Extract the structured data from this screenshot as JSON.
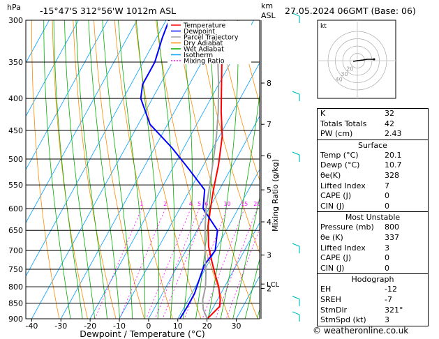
{
  "header": {
    "location": "-15°47'S  312°56'W  1012m  ASL",
    "datetime": "27.05.2024  06GMT  (Base: 06)",
    "hpa_label": "hPa",
    "km_label": "km",
    "asl_label": "ASL"
  },
  "legend": [
    "Temperature",
    "Dewpoint",
    "Parcel Trajectory",
    "Dry Adiabat",
    "Wet Adiabat",
    "Isotherm",
    "Mixing Ratio"
  ],
  "colors": {
    "temperature": "#ff0000",
    "dewpoint": "#0000ff",
    "parcel": "#a0a0a0",
    "dry_adiabat": "#ff8c00",
    "wet_adiabat": "#00b000",
    "isotherm": "#00a0ff",
    "mixing_ratio": "#ff00ff",
    "wind": "#00c0c0"
  },
  "chart_data": {
    "type": "line",
    "xlabel": "Dewpoint / Temperature (°C)",
    "ylabel": "",
    "y2label": "Mixing Ratio (g/kg)",
    "x_ticks": [
      -40,
      -30,
      -20,
      -10,
      0,
      10,
      20,
      30
    ],
    "x_range": [
      -42,
      38
    ],
    "pressure_levels": [
      300,
      350,
      400,
      450,
      500,
      550,
      600,
      650,
      700,
      750,
      800,
      850,
      900
    ],
    "km_ticks": [
      {
        "km": "8",
        "p": 378
      },
      {
        "km": "7",
        "p": 440
      },
      {
        "km": "6",
        "p": 494
      },
      {
        "km": "5",
        "p": 560
      },
      {
        "km": "4",
        "p": 630
      },
      {
        "km": "3",
        "p": 712
      },
      {
        "km": "2",
        "p": 805
      }
    ],
    "lcl": {
      "label": "LCL",
      "p": 792
    },
    "mixing_ratio_labels": [
      {
        "label": "1",
        "t": -9.5
      },
      {
        "label": "2",
        "t": -1
      },
      {
        "label": "4",
        "t": 8
      },
      {
        "label": "5",
        "t": 11.5
      },
      {
        "label": "6",
        "t": 14.5
      },
      {
        "label": "10",
        "t": 20.5
      },
      {
        "label": "15",
        "t": 27.5
      },
      {
        "label": "20",
        "t": 32.5
      },
      {
        "label": "25",
        "t": 35.5
      }
    ],
    "series": [
      {
        "name": "Temperature",
        "points": [
          [
            20.1,
            900
          ],
          [
            22,
            860
          ],
          [
            21,
            840
          ],
          [
            18,
            800
          ],
          [
            14,
            760
          ],
          [
            10,
            720
          ],
          [
            7,
            690
          ],
          [
            3,
            640
          ],
          [
            0.5,
            600
          ],
          [
            -2,
            560
          ],
          [
            -5,
            510
          ],
          [
            -9,
            460
          ],
          [
            -14,
            420
          ],
          [
            -19,
            380
          ],
          [
            -26,
            330
          ],
          [
            -30,
            300
          ]
        ]
      },
      {
        "name": "Dewpoint",
        "points": [
          [
            10.7,
            900
          ],
          [
            11,
            860
          ],
          [
            11,
            820
          ],
          [
            10.5,
            800
          ],
          [
            10,
            780
          ],
          [
            9,
            740
          ],
          [
            10,
            700
          ],
          [
            7,
            650
          ],
          [
            -2,
            600
          ],
          [
            -5,
            560
          ],
          [
            -14,
            520
          ],
          [
            -24,
            480
          ],
          [
            -36,
            440
          ],
          [
            -44,
            400
          ],
          [
            -46,
            380
          ],
          [
            -46,
            350
          ],
          [
            -48,
            320
          ],
          [
            -49,
            300
          ]
        ]
      },
      {
        "name": "Parcel Trajectory",
        "points": [
          [
            20.1,
            900
          ],
          [
            17,
            870
          ],
          [
            15,
            840
          ],
          [
            13.5,
            800
          ],
          [
            11,
            760
          ],
          [
            8,
            720
          ],
          [
            5,
            680
          ],
          [
            2,
            640
          ],
          [
            -1,
            600
          ],
          [
            -3.5,
            560
          ],
          [
            -7,
            510
          ],
          [
            -11,
            460
          ],
          [
            -15,
            420
          ],
          [
            -20,
            380
          ],
          [
            -26,
            340
          ],
          [
            -30,
            300
          ]
        ]
      }
    ],
    "winds": [
      {
        "p": 300
      },
      {
        "p": 400
      },
      {
        "p": 500
      },
      {
        "p": 700
      },
      {
        "p": 850
      },
      {
        "p": 900
      }
    ]
  },
  "hodograph": {
    "label": "kt",
    "rings": [
      "40",
      "30",
      "20"
    ]
  },
  "table": {
    "indices": [
      {
        "k": "K",
        "v": "32"
      },
      {
        "k": "Totals Totals",
        "v": "42"
      },
      {
        "k": "PW (cm)",
        "v": "2.43"
      }
    ],
    "surface_title": "Surface",
    "surface": [
      {
        "k": "Temp (°C)",
        "v": "20.1"
      },
      {
        "k": "Dewp (°C)",
        "v": "10.7"
      },
      {
        "k": "θe(K)",
        "v": "328"
      },
      {
        "k": "Lifted Index",
        "v": "7"
      },
      {
        "k": "CAPE (J)",
        "v": "0"
      },
      {
        "k": "CIN (J)",
        "v": "0"
      }
    ],
    "unstable_title": "Most Unstable",
    "unstable": [
      {
        "k": "Pressure (mb)",
        "v": "800"
      },
      {
        "k": "θe (K)",
        "v": "337"
      },
      {
        "k": "Lifted Index",
        "v": "3"
      },
      {
        "k": "CAPE (J)",
        "v": "0"
      },
      {
        "k": "CIN (J)",
        "v": "0"
      }
    ],
    "hodograph_title": "Hodograph",
    "hodo": [
      {
        "k": "EH",
        "v": "-12"
      },
      {
        "k": "SREH",
        "v": "-7"
      },
      {
        "k": "StmDir",
        "v": "321°"
      },
      {
        "k": "StmSpd (kt)",
        "v": "3"
      }
    ]
  },
  "footer": "© weatheronline.co.uk"
}
